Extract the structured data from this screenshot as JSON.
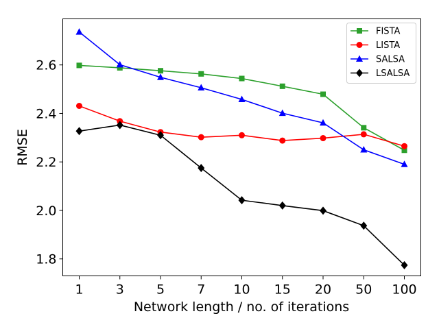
{
  "chart_data": {
    "type": "line",
    "title": "",
    "xlabel": "Network length / no. of iterations",
    "ylabel": "RMSE",
    "categories": [
      "1",
      "3",
      "5",
      "7",
      "10",
      "15",
      "20",
      "50",
      "100"
    ],
    "ylim": [
      1.73,
      2.79
    ],
    "yticks": [
      "1.8",
      "2.0",
      "2.2",
      "2.4",
      "2.6"
    ],
    "ytick_values": [
      1.8,
      2.0,
      2.2,
      2.4,
      2.6
    ],
    "grid": false,
    "legend_position": "top-right",
    "series": [
      {
        "name": "FISTA",
        "color": "#2ca02c",
        "marker": "square",
        "values": [
          2.598,
          2.588,
          2.576,
          2.563,
          2.544,
          2.512,
          2.479,
          2.341,
          2.248
        ]
      },
      {
        "name": "LISTA",
        "color": "#ff0000",
        "marker": "circle",
        "values": [
          2.431,
          2.368,
          2.323,
          2.302,
          2.31,
          2.288,
          2.298,
          2.314,
          2.265
        ]
      },
      {
        "name": "SALSA",
        "color": "#0000ff",
        "marker": "triangle",
        "values": [
          2.736,
          2.601,
          2.549,
          2.506,
          2.458,
          2.401,
          2.361,
          2.25,
          2.19
        ]
      },
      {
        "name": "LSALSA",
        "color": "#000000",
        "marker": "diamond",
        "values": [
          2.327,
          2.352,
          2.31,
          2.175,
          2.042,
          2.02,
          1.999,
          1.937,
          1.774
        ]
      }
    ]
  }
}
